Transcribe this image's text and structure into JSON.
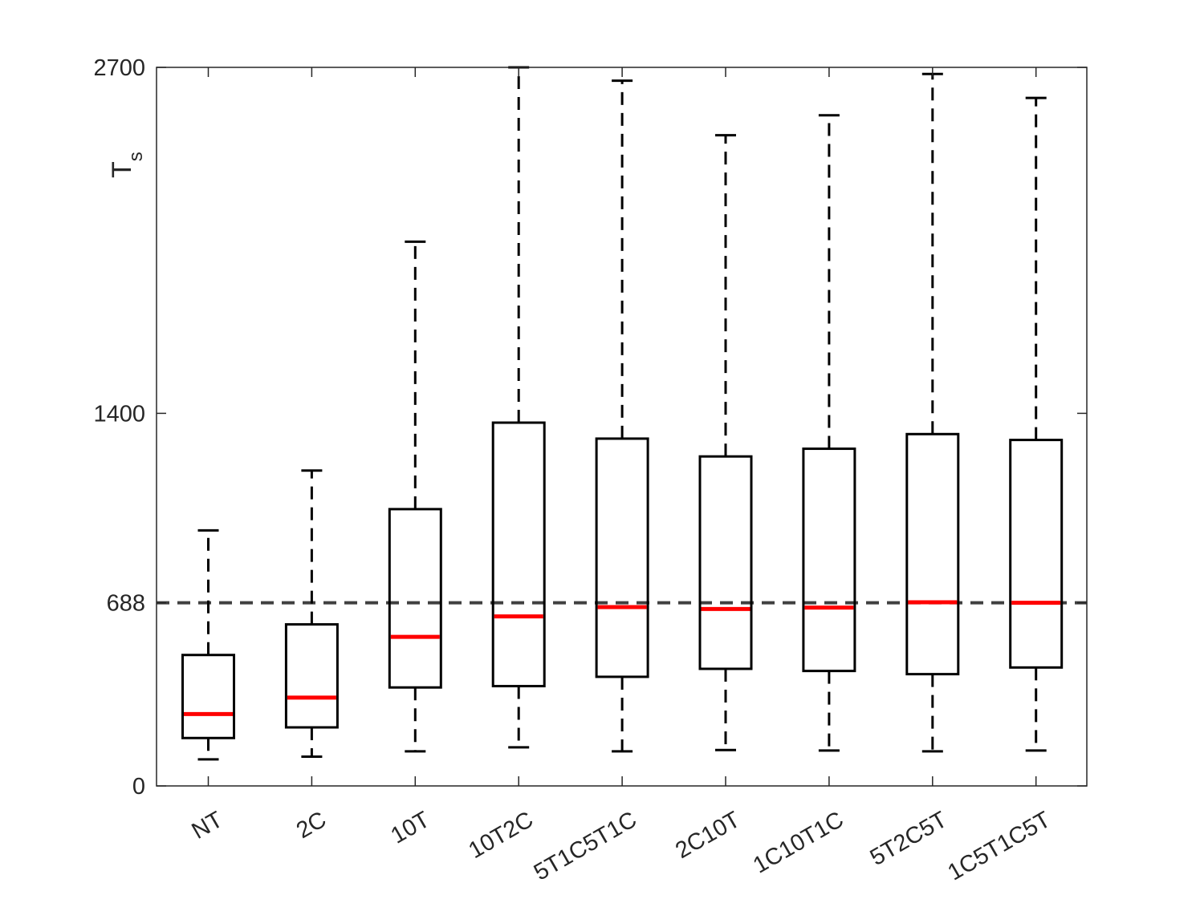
{
  "chart_data": {
    "type": "boxplot",
    "title": "",
    "xlabel": "",
    "ylabel": {
      "main": "T",
      "subscript": "s"
    },
    "ylim": [
      0,
      2700
    ],
    "yticks": [
      0,
      688,
      1400,
      2700
    ],
    "ytick_labels": [
      "0",
      "688",
      "1400",
      "2700"
    ],
    "reference_line": {
      "value": 688,
      "style": "dashed",
      "color": "#404040"
    },
    "box_color": "#000000",
    "median_color": "#ff0000",
    "categories": [
      "NT",
      "2C",
      "10T",
      "10T2C",
      "5T1C5T1C",
      "2C10T",
      "1C10T1C",
      "5T2C5T",
      "1C5T1C5T"
    ],
    "boxes": [
      {
        "label": "NT",
        "whisker_low": 100,
        "q1": 180,
        "median": 270,
        "q3": 492,
        "whisker_high": 960
      },
      {
        "label": "2C",
        "whisker_low": 110,
        "q1": 220,
        "median": 332,
        "q3": 607,
        "whisker_high": 1185
      },
      {
        "label": "10T",
        "whisker_low": 130,
        "q1": 370,
        "median": 560,
        "q3": 1040,
        "whisker_high": 2045
      },
      {
        "label": "10T2C",
        "whisker_low": 145,
        "q1": 375,
        "median": 637,
        "q3": 1365,
        "whisker_high": 2700
      },
      {
        "label": "5T1C5T1C",
        "whisker_low": 130,
        "q1": 410,
        "median": 672,
        "q3": 1305,
        "whisker_high": 2650
      },
      {
        "label": "2C10T",
        "whisker_low": 135,
        "q1": 440,
        "median": 665,
        "q3": 1238,
        "whisker_high": 2445
      },
      {
        "label": "1C10T1C",
        "whisker_low": 133,
        "q1": 432,
        "median": 670,
        "q3": 1267,
        "whisker_high": 2520
      },
      {
        "label": "5T2C5T",
        "whisker_low": 130,
        "q1": 420,
        "median": 690,
        "q3": 1322,
        "whisker_high": 2675
      },
      {
        "label": "1C5T1C5T",
        "whisker_low": 133,
        "q1": 445,
        "median": 688,
        "q3": 1300,
        "whisker_high": 2585
      }
    ]
  }
}
